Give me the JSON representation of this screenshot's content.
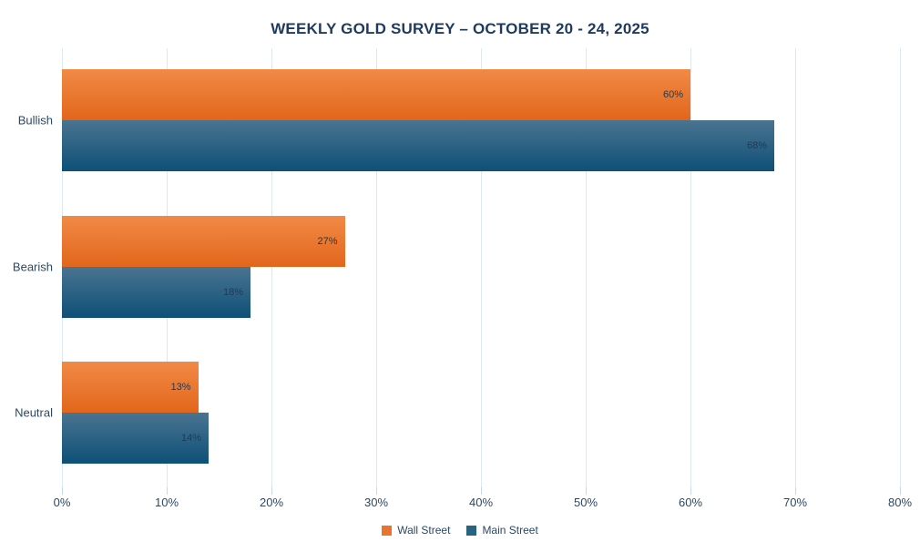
{
  "chart_data": {
    "type": "bar",
    "orientation": "horizontal",
    "title": "WEEKLY GOLD SURVEY – OCTOBER 20 - 24, 2025",
    "categories": [
      "Bullish",
      "Bearish",
      "Neutral"
    ],
    "series": [
      {
        "name": "Wall Street",
        "values": [
          60,
          27,
          13
        ],
        "value_labels": [
          "60%",
          "27%",
          "13%"
        ],
        "color": "#e9742f",
        "gradient_top": "#f18a46",
        "gradient_bottom": "#e2661c"
      },
      {
        "name": "Main Street",
        "values": [
          68,
          18,
          14
        ],
        "value_labels": [
          "68%",
          "18%",
          "14%"
        ],
        "color": "#266480",
        "gradient_top": "#4a7491",
        "gradient_bottom": "#0e5077"
      }
    ],
    "x_axis": {
      "min": 0,
      "max": 80,
      "tick_values": [
        0,
        10,
        20,
        30,
        40,
        50,
        60,
        70,
        80
      ],
      "ticks": [
        "0%",
        "10%",
        "20%",
        "30%",
        "40%",
        "50%",
        "60%",
        "70%",
        "80%"
      ]
    },
    "grid": true,
    "legend_position": "bottom",
    "colors": {
      "title_text": "#1f3a5c",
      "axis_text": "#2b4866",
      "value_label_text": "#203a55",
      "gridline": "#dce8f2",
      "background": "#ffffff"
    }
  }
}
